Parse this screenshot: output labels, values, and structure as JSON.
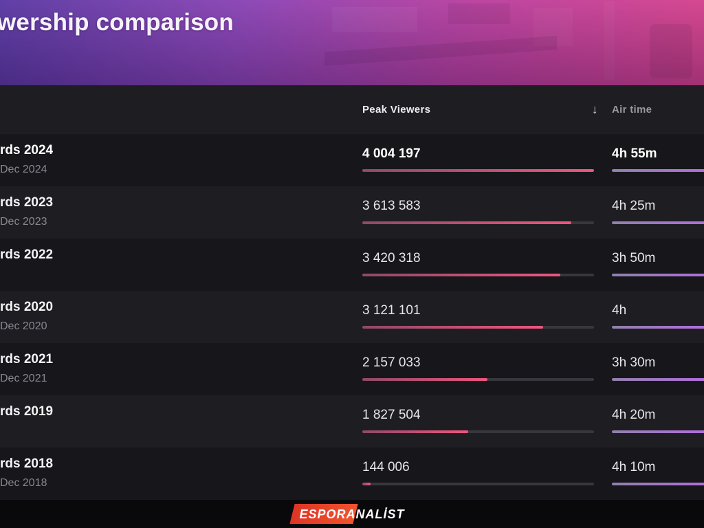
{
  "hero": {
    "title": "wership comparison"
  },
  "table": {
    "columns": {
      "peak": "Peak Viewers",
      "air": "Air time",
      "sort_icon": "↓"
    },
    "sorted_by": "Peak Viewers descending",
    "max_peak_value": 4004197,
    "rows": [
      {
        "name": "rds 2024",
        "date": "Dec 2024",
        "peak": "4 004 197",
        "peak_value": 4004197,
        "peak_pct": 100,
        "air": "4h 55m",
        "air_pct": 100,
        "highlight": true
      },
      {
        "name": "rds 2023",
        "date": "Dec 2023",
        "peak": "3 613 583",
        "peak_value": 3613583,
        "peak_pct": 90.2,
        "air": "4h 25m",
        "air_pct": 100,
        "highlight": false
      },
      {
        "name": "rds 2022",
        "date": "",
        "peak": "3 420 318",
        "peak_value": 3420318,
        "peak_pct": 85.4,
        "air": "3h 50m",
        "air_pct": 100,
        "highlight": false
      },
      {
        "name": "rds 2020",
        "date": "Dec 2020",
        "peak": "3 121 101",
        "peak_value": 3121101,
        "peak_pct": 78.0,
        "air": "4h",
        "air_pct": 100,
        "highlight": false
      },
      {
        "name": "rds 2021",
        "date": "Dec 2021",
        "peak": "2 157 033",
        "peak_value": 2157033,
        "peak_pct": 53.9,
        "air": "3h 30m",
        "air_pct": 100,
        "highlight": false
      },
      {
        "name": "rds 2019",
        "date": "",
        "peak": "1 827 504",
        "peak_value": 1827504,
        "peak_pct": 45.6,
        "air": "4h 20m",
        "air_pct": 100,
        "highlight": false
      },
      {
        "name": "rds 2018",
        "date": "Dec 2018",
        "peak": "144 006",
        "peak_value": 144006,
        "peak_pct": 3.6,
        "air": "4h 10m",
        "air_pct": 100,
        "highlight": false
      }
    ]
  },
  "footer": {
    "logo_left": "ESPOR",
    "logo_right": "ANALİST"
  },
  "colors": {
    "peak_a": "#8e4a67",
    "peak_b": "#f0557f",
    "air_a": "#9181ac",
    "air_b": "#b06edb",
    "track": "#37373d",
    "logo_a": "#dd3526",
    "logo_b": "#f2532e",
    "hero_a": "#5a38a2",
    "hero_b": "#8a43b4",
    "hero_c": "#b93f9e",
    "hero_d": "#d6418b"
  }
}
